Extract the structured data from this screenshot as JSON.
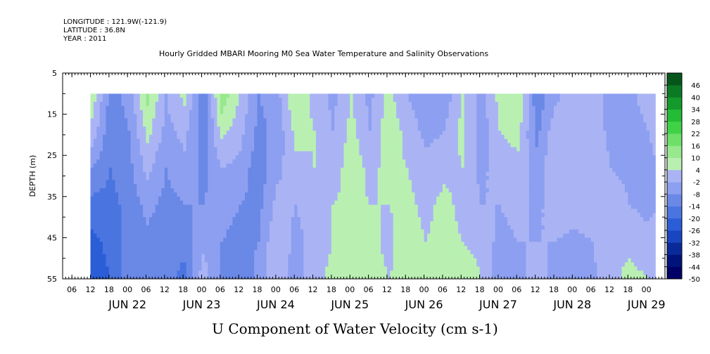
{
  "header": {
    "longitude": "LONGITUDE : 121.9W(-121.9)",
    "latitude": "LATITUDE : 36.8N",
    "year": "YEAR : 2011"
  },
  "chart_data": {
    "type": "heatmap",
    "title": "Hourly Gridded MBARI Mooring M0 Sea Water Temperature and Salinity Observations",
    "xlabel": "U Component of Water Velocity (cm s-1)",
    "ylabel": "DEPTH (m)",
    "ylim": [
      5,
      55
    ],
    "y_inverted": true,
    "y_ticks": [
      5,
      15,
      25,
      35,
      45,
      55
    ],
    "x_hour_ticks": [
      "06",
      "12",
      "18",
      "00",
      "06",
      "12",
      "18",
      "00",
      "06",
      "12",
      "18",
      "00",
      "06",
      "12",
      "18",
      "00",
      "06",
      "12",
      "18",
      "00",
      "06",
      "12",
      "18",
      "00",
      "06",
      "12",
      "18",
      "00",
      "06",
      "12",
      "18",
      "00"
    ],
    "x_day_labels": [
      "JUN 22",
      "JUN 23",
      "JUN 24",
      "JUN 25",
      "JUN 26",
      "JUN 27",
      "JUN 28",
      "JUN 29"
    ],
    "xlim": [
      "2011-06-21T03:00",
      "2011-06-29T06:00"
    ],
    "data_depth_range": [
      10,
      55
    ],
    "data_time_range": [
      "2011-06-21T12:00",
      "2011-06-29T03:00"
    ],
    "colorbar": {
      "levels": [
        -50,
        -44,
        -38,
        -32,
        -26,
        -20,
        -14,
        -8,
        -2,
        4,
        10,
        16,
        22,
        28,
        34,
        40,
        46
      ],
      "label_values": [
        "46",
        "40",
        "34",
        "28",
        "22",
        "16",
        "10",
        "4",
        "-2",
        "-8",
        "-14",
        "-20",
        "-26",
        "-32",
        "-38",
        "-44",
        "-50"
      ],
      "colors": [
        "#000066",
        "#00137a",
        "#0a2a99",
        "#1a45c0",
        "#2b5ed6",
        "#4a74e0",
        "#6a88e6",
        "#8d9ff0",
        "#aab4f4",
        "#b9f0b2",
        "#98e88e",
        "#6ee06a",
        "#3fd246",
        "#24bb36",
        "#149a2a",
        "#0c7a24",
        "#06561b"
      ]
    },
    "columns": [
      {
        "time": "2011-06-21T12:00",
        "u": [
          8,
          2,
          -8,
          -16,
          -22,
          -25
        ]
      },
      {
        "time": "2011-06-21T18:00",
        "u": [
          -10,
          -12,
          -14,
          -16,
          -18,
          -20
        ]
      },
      {
        "time": "2011-06-22T00:00",
        "u": [
          -6,
          -8,
          -10,
          -12,
          -12,
          -10
        ]
      },
      {
        "time": "2011-06-22T06:00",
        "u": [
          12,
          6,
          0,
          -6,
          -10,
          -14
        ]
      },
      {
        "time": "2011-06-22T12:00",
        "u": [
          -2,
          -4,
          -8,
          -10,
          -12,
          -12
        ]
      },
      {
        "time": "2011-06-22T18:00",
        "u": [
          6,
          0,
          -4,
          -8,
          -12,
          -16
        ]
      },
      {
        "time": "2011-06-23T00:00",
        "u": [
          -14,
          -12,
          -10,
          -8,
          -4,
          2
        ]
      },
      {
        "time": "2011-06-23T06:00",
        "u": [
          14,
          6,
          -2,
          -6,
          -8,
          -10
        ]
      },
      {
        "time": "2011-06-23T12:00",
        "u": [
          4,
          0,
          -4,
          -8,
          -10,
          -12
        ]
      },
      {
        "time": "2011-06-23T18:00",
        "u": [
          -8,
          -10,
          -12,
          -10,
          -8,
          -6
        ]
      },
      {
        "time": "2011-06-24T00:00",
        "u": [
          -4,
          -6,
          -4,
          0,
          4,
          2
        ]
      },
      {
        "time": "2011-06-24T06:00",
        "u": [
          10,
          6,
          2,
          -2,
          -4,
          -6
        ]
      },
      {
        "time": "2011-06-24T12:00",
        "u": [
          2,
          4,
          4,
          2,
          0,
          2
        ]
      },
      {
        "time": "2011-06-24T18:00",
        "u": [
          -4,
          -2,
          0,
          4,
          4,
          6
        ]
      },
      {
        "time": "2011-06-25T00:00",
        "u": [
          4,
          6,
          8,
          6,
          4,
          6
        ]
      },
      {
        "time": "2011-06-25T06:00",
        "u": [
          -4,
          -2,
          2,
          4,
          6,
          8
        ]
      },
      {
        "time": "2011-06-25T12:00",
        "u": [
          6,
          8,
          6,
          4,
          2,
          4
        ]
      },
      {
        "time": "2011-06-25T18:00",
        "u": [
          -2,
          2,
          4,
          6,
          8,
          6
        ]
      },
      {
        "time": "2011-06-26T00:00",
        "u": [
          -6,
          -4,
          0,
          2,
          4,
          6
        ]
      },
      {
        "time": "2011-06-26T06:00",
        "u": [
          -6,
          -2,
          2,
          6,
          6,
          4
        ]
      },
      {
        "time": "2011-06-26T12:00",
        "u": [
          4,
          6,
          4,
          2,
          4,
          8
        ]
      },
      {
        "time": "2011-06-26T18:00",
        "u": [
          -4,
          -6,
          -4,
          -2,
          2,
          4
        ]
      },
      {
        "time": "2011-06-27T00:00",
        "u": [
          6,
          4,
          2,
          -2,
          -4,
          -6
        ]
      },
      {
        "time": "2011-06-27T06:00",
        "u": [
          10,
          6,
          2,
          0,
          -2,
          -4
        ]
      },
      {
        "time": "2011-06-27T12:00",
        "u": [
          -12,
          -10,
          -6,
          -4,
          -2,
          0
        ]
      },
      {
        "time": "2011-06-27T18:00",
        "u": [
          -4,
          2,
          4,
          2,
          -2,
          -4
        ]
      },
      {
        "time": "2011-06-28T00:00",
        "u": [
          2,
          2,
          2,
          2,
          -4,
          -6
        ]
      },
      {
        "time": "2011-06-28T06:00",
        "u": [
          4,
          2,
          2,
          2,
          -2,
          -4
        ]
      },
      {
        "time": "2011-06-28T12:00",
        "u": [
          -8,
          -4,
          -2,
          2,
          4,
          2
        ]
      },
      {
        "time": "2011-06-28T18:00",
        "u": [
          -4,
          -6,
          -4,
          -2,
          2,
          6
        ]
      },
      {
        "time": "2011-06-29T00:00",
        "u": [
          2,
          -2,
          -6,
          -4,
          0,
          4
        ]
      },
      {
        "time": "2011-06-29T03:00",
        "u": [
          4,
          2,
          -2,
          -2,
          2,
          4
        ]
      }
    ],
    "column_depths": [
      10,
      19,
      28,
      37,
      46,
      55
    ]
  }
}
